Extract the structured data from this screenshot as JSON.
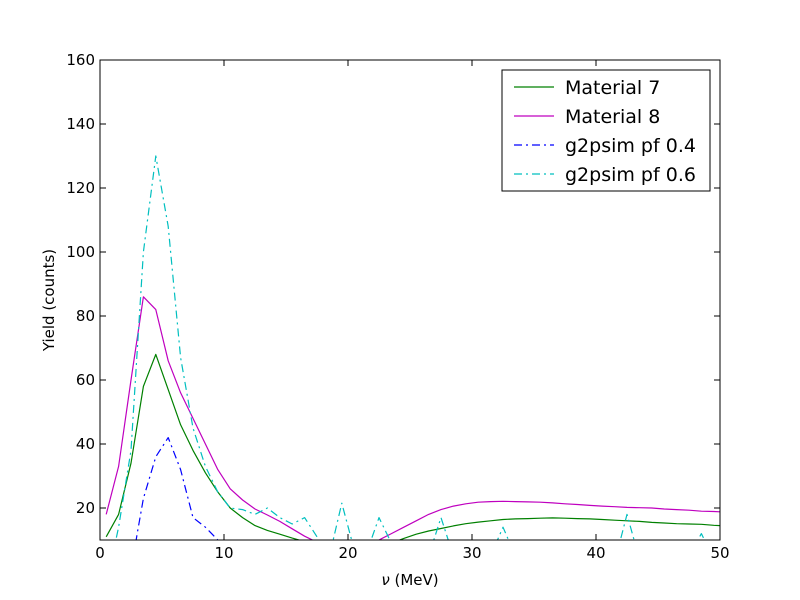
{
  "chart_data": {
    "type": "line",
    "title": "",
    "xlabel_symbol": "ν",
    "xlabel_unit": " (MeV)",
    "ylabel": "Yield (counts)",
    "xlim": [
      0,
      50
    ],
    "ylim": [
      10,
      160
    ],
    "xticks": [
      0,
      10,
      20,
      30,
      40,
      50
    ],
    "yticks": [
      20,
      40,
      60,
      80,
      100,
      120,
      140,
      160
    ],
    "grid": false,
    "legend_position": "top-right",
    "series": [
      {
        "name": "Material 7",
        "color": "#008000",
        "dash": "solid",
        "x": [
          0.5,
          1.5,
          2.5,
          3.5,
          4.5,
          5.5,
          6.5,
          7.5,
          8.5,
          9.5,
          10.5,
          11.5,
          12.5,
          13.5,
          14.5,
          15.5,
          16.5,
          17.5,
          18.5,
          19.5,
          20.5,
          21.5,
          22.5,
          23.5,
          24.5,
          25.5,
          26.5,
          27.5,
          28.5,
          29.5,
          30.5,
          31.5,
          32.5,
          33.5,
          34.5,
          35.5,
          36.5,
          37.5,
          38.5,
          39.5,
          40.5,
          41.5,
          42.5,
          43.5,
          44.5,
          45.5,
          46.5,
          47.5,
          48.5,
          49.5,
          50
        ],
        "y": [
          11,
          18,
          34,
          58,
          68,
          57,
          46,
          38,
          31,
          25,
          20,
          17,
          14.5,
          13,
          11.8,
          10.6,
          9.5,
          8.3,
          7.2,
          6.5,
          6,
          6.5,
          7.5,
          9,
          10.5,
          11.8,
          12.8,
          13.6,
          14.4,
          15.1,
          15.6,
          16,
          16.4,
          16.6,
          16.7,
          16.8,
          16.9,
          16.8,
          16.7,
          16.6,
          16.4,
          16.2,
          16,
          15.8,
          15.5,
          15.3,
          15.1,
          15,
          14.9,
          14.6,
          14.5
        ]
      },
      {
        "name": "Material 8",
        "color": "#bf00bf",
        "dash": "solid",
        "x": [
          0.5,
          1.5,
          2.5,
          3.5,
          4.5,
          5.5,
          6.5,
          7.5,
          8.5,
          9.5,
          10.5,
          11.5,
          12.5,
          13.5,
          14.5,
          15.5,
          16.5,
          17.5,
          18.5,
          19.5,
          20.5,
          21.5,
          22.5,
          23.5,
          24.5,
          25.5,
          26.5,
          27.5,
          28.5,
          29.5,
          30.5,
          31.5,
          32.5,
          33.5,
          34.5,
          35.5,
          36.5,
          37.5,
          38.5,
          39.5,
          40.5,
          41.5,
          42.5,
          43.5,
          44.5,
          45.5,
          46.5,
          47.5,
          48.5,
          49.5,
          50
        ],
        "y": [
          18,
          33,
          60,
          86,
          82,
          66,
          56,
          48,
          40,
          32,
          26,
          22.5,
          19.7,
          17.8,
          15.8,
          13.5,
          11.2,
          9.3,
          8.1,
          7.5,
          7.5,
          8.5,
          10,
          12,
          14,
          16,
          18,
          19.5,
          20.6,
          21.3,
          21.8,
          22,
          22.1,
          22,
          21.9,
          21.8,
          21.6,
          21.3,
          21.1,
          20.8,
          20.6,
          20.4,
          20.2,
          20.1,
          20,
          19.7,
          19.5,
          19.3,
          19,
          18.9,
          18.8
        ]
      },
      {
        "name": "g2psim pf 0.4",
        "color": "#0000ff",
        "dash": "dashdot",
        "x": [
          0.5,
          1.5,
          2.5,
          3,
          3.5,
          4.5,
          5.5,
          6.5,
          7.5,
          8.5,
          9.5,
          10.5,
          11.5
        ],
        "y": [
          0,
          0,
          0,
          12,
          23,
          36,
          42,
          32,
          17,
          14,
          10,
          8,
          7
        ]
      },
      {
        "name": "g2psim pf 0.6",
        "color": "#00bfbf",
        "dash": "dashdot",
        "x": [
          0.5,
          1,
          1.5,
          2.5,
          3.5,
          4.5,
          5.5,
          6.5,
          7.5,
          8.5,
          9.5,
          10.5,
          11.5,
          12.5,
          13.5,
          14.5,
          15.5,
          16.5,
          17.5,
          18.5,
          19.5,
          20.5,
          21.5,
          22.5,
          23.5,
          24.5,
          25.5,
          26.5,
          27.5,
          28.5,
          29.5,
          30.5,
          31.5,
          32.5,
          33.5,
          34.5,
          35.5,
          36.5,
          37.5,
          38.5,
          39.5,
          40.5,
          41.5,
          42.5,
          43.5,
          44.5,
          45.5,
          46.5,
          47.5,
          48.5,
          49.5,
          50
        ],
        "y": [
          0,
          5,
          14,
          38,
          100,
          130,
          108,
          67,
          45,
          33,
          25,
          20,
          19.5,
          18,
          20,
          17,
          15,
          17,
          11,
          5,
          21.5,
          7,
          6,
          17,
          9,
          4,
          8,
          5,
          17,
          5,
          5,
          4,
          5,
          14,
          5,
          3,
          3,
          4,
          3,
          5,
          4,
          4,
          3,
          18,
          4,
          3,
          3,
          4,
          5,
          12,
          4,
          3
        ]
      }
    ]
  }
}
